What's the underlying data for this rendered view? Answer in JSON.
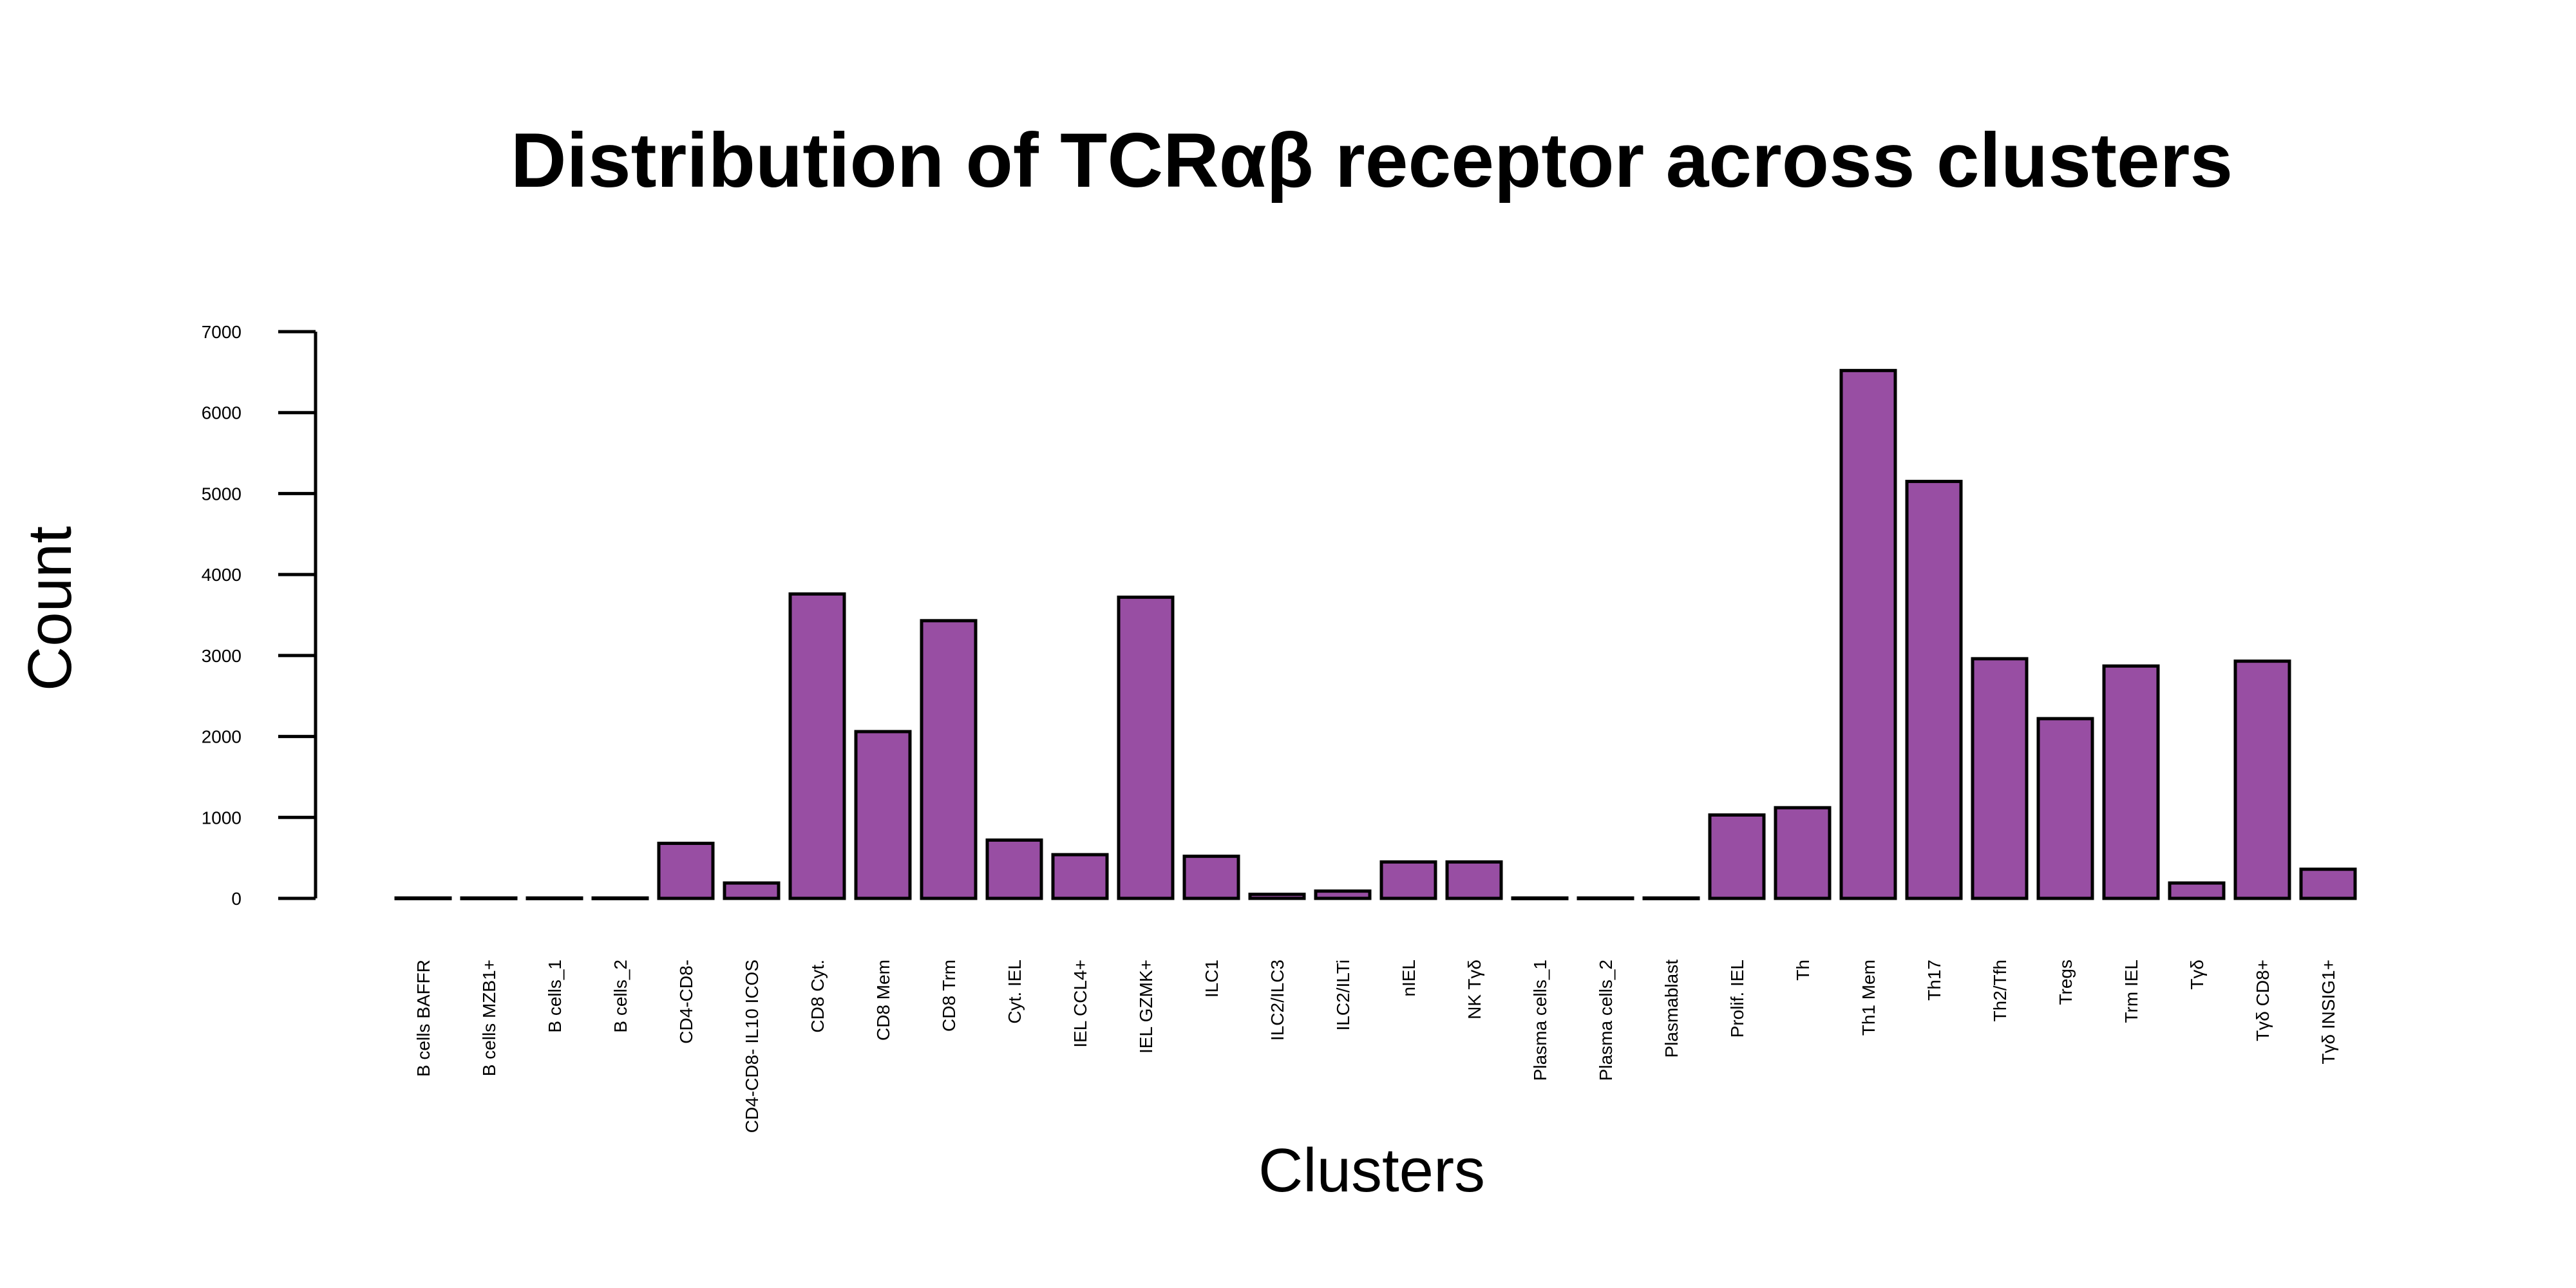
{
  "chart_data": {
    "type": "bar",
    "title": "Distribution of TCRαβ receptor across clusters",
    "xlabel": "Clusters",
    "ylabel": "Count",
    "ylim": [
      0,
      7000
    ],
    "yticks": [
      0,
      1000,
      2000,
      3000,
      4000,
      5000,
      6000,
      7000
    ],
    "grid": false,
    "categories": [
      "B cells BAFFR",
      "B cells MZB1+",
      "B cells_1",
      "B cells_2",
      "CD4-CD8-",
      "CD4-CD8- IL10 ICOS",
      "CD8 Cyt.",
      "CD8 Mem",
      "CD8 Trm",
      "Cyt. IEL",
      "IEL CCL4+",
      "IEL GZMK+",
      "ILC1",
      "ILC2/ILC3",
      "ILC2/ILTi",
      "nIEL",
      "NK Tγδ",
      "Plasma cells_1",
      "Plasma cells_2",
      "Plasmablast",
      "Prolif. IEL",
      "Th",
      "Th1 Mem",
      "Th17",
      "Th2/Tfh",
      "Tregs",
      "Trm IEL",
      "Tγδ",
      "Tγδ CD8+",
      "Tγδ INSIG1+"
    ],
    "values": [
      5,
      5,
      5,
      5,
      680,
      190,
      3760,
      2060,
      3430,
      720,
      540,
      3720,
      520,
      50,
      90,
      450,
      450,
      5,
      5,
      5,
      1030,
      1120,
      6520,
      5150,
      2960,
      2220,
      2870,
      190,
      2930,
      360
    ],
    "colors": {
      "bar_fill": "#984EA3",
      "bar_stroke": "#000000"
    }
  }
}
